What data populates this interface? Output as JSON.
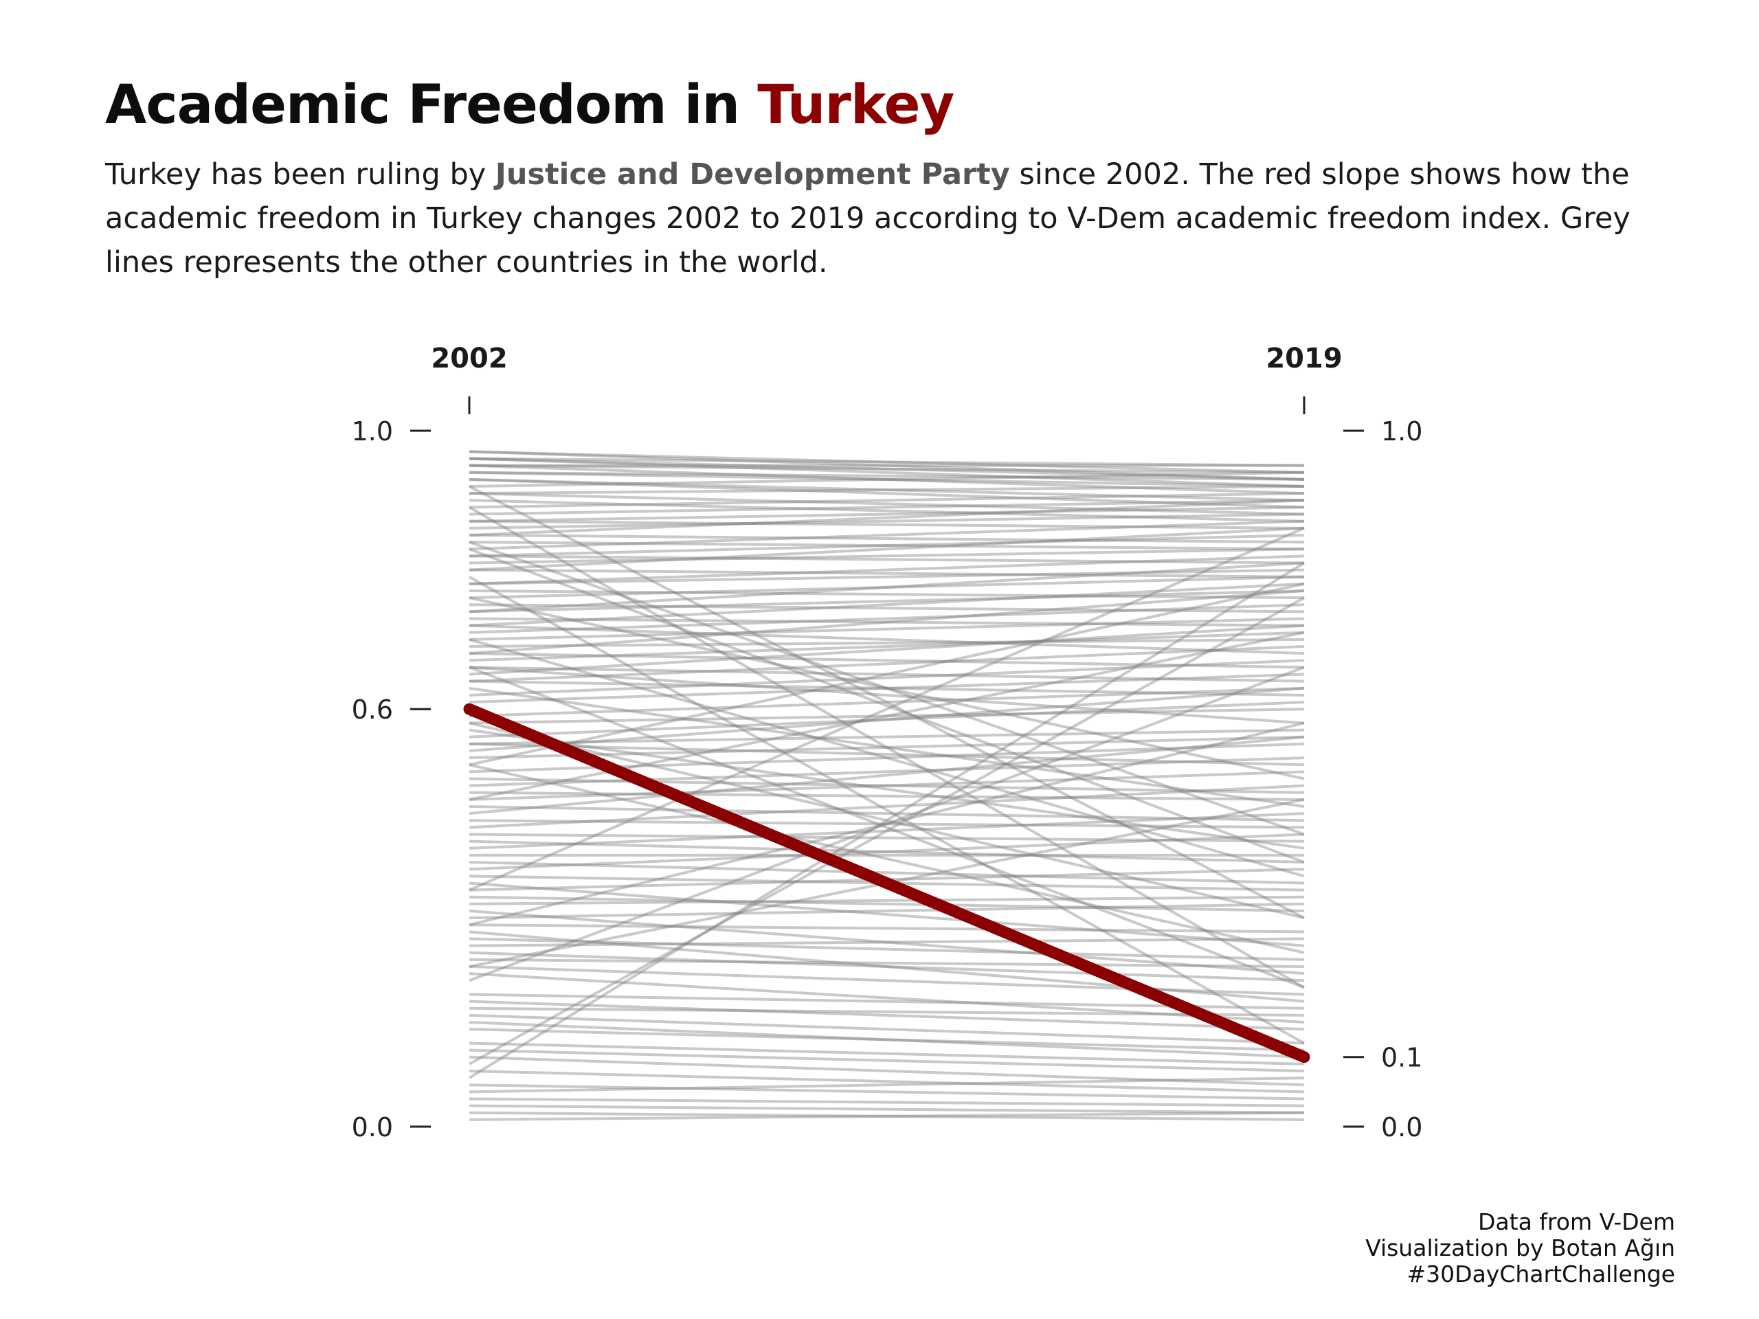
{
  "header": {
    "title_prefix": "Academic Freedom in ",
    "title_highlight": "Turkey",
    "subtitle": {
      "part1": "Turkey has been ruling by ",
      "bold": "Justice and Development Party",
      "part2": " since 2002. The red slope shows how the academic freedom in Turkey changes 2002 to 2019 according to V-Dem academic freedom index. Grey lines represents the other countries in the world."
    }
  },
  "caption": {
    "line1": "Data from V-Dem",
    "line2": "Visualization by Botan Ağın",
    "line3": "#30DayChartChallenge"
  },
  "colors": {
    "highlight": "#8b0000",
    "others": "#7f7f7f",
    "bold_text": "#555555"
  },
  "chart_data": {
    "type": "line",
    "x": [
      "2002",
      "2019"
    ],
    "ylim": [
      0,
      1
    ],
    "left_ticks": [
      "1.0",
      "0.6",
      "0.0"
    ],
    "left_tick_values": [
      1.0,
      0.6,
      0.0
    ],
    "right_ticks": [
      "1.0",
      "0.1",
      "0.0"
    ],
    "right_tick_values": [
      1.0,
      0.1,
      0.0
    ],
    "highlight": {
      "start": 0.6,
      "end": 0.1
    },
    "others": [
      [
        0.97,
        0.94
      ],
      [
        0.97,
        0.93
      ],
      [
        0.96,
        0.95
      ],
      [
        0.96,
        0.92
      ],
      [
        0.96,
        0.93
      ],
      [
        0.95,
        0.94
      ],
      [
        0.95,
        0.91
      ],
      [
        0.95,
        0.95
      ],
      [
        0.94,
        0.92
      ],
      [
        0.94,
        0.93
      ],
      [
        0.93,
        0.9
      ],
      [
        0.93,
        0.89
      ],
      [
        0.92,
        0.94
      ],
      [
        0.92,
        0.3
      ],
      [
        0.91,
        0.88
      ],
      [
        0.91,
        0.92
      ],
      [
        0.9,
        0.87
      ],
      [
        0.89,
        0.91
      ],
      [
        0.89,
        0.2
      ],
      [
        0.88,
        0.9
      ],
      [
        0.87,
        0.86
      ],
      [
        0.87,
        0.89
      ],
      [
        0.86,
        0.88
      ],
      [
        0.85,
        0.84
      ],
      [
        0.85,
        0.9
      ],
      [
        0.84,
        0.83
      ],
      [
        0.84,
        0.42
      ],
      [
        0.83,
        0.87
      ],
      [
        0.82,
        0.81
      ],
      [
        0.82,
        0.85
      ],
      [
        0.81,
        0.83
      ],
      [
        0.8,
        0.79
      ],
      [
        0.8,
        0.86
      ],
      [
        0.79,
        0.12
      ],
      [
        0.78,
        0.8
      ],
      [
        0.78,
        0.82
      ],
      [
        0.77,
        0.76
      ],
      [
        0.76,
        0.79
      ],
      [
        0.76,
        0.5
      ],
      [
        0.75,
        0.74
      ],
      [
        0.74,
        0.81
      ],
      [
        0.74,
        0.77
      ],
      [
        0.73,
        0.72
      ],
      [
        0.72,
        0.78
      ],
      [
        0.72,
        0.68
      ],
      [
        0.71,
        0.75
      ],
      [
        0.7,
        0.36
      ],
      [
        0.7,
        0.73
      ],
      [
        0.69,
        0.7
      ],
      [
        0.68,
        0.66
      ],
      [
        0.68,
        0.77
      ],
      [
        0.67,
        0.71
      ],
      [
        0.66,
        0.64
      ],
      [
        0.66,
        0.58
      ],
      [
        0.65,
        0.72
      ],
      [
        0.64,
        0.69
      ],
      [
        0.64,
        0.62
      ],
      [
        0.63,
        0.46
      ],
      [
        0.62,
        0.67
      ],
      [
        0.61,
        0.65
      ],
      [
        0.59,
        0.63
      ],
      [
        0.58,
        0.6
      ],
      [
        0.57,
        0.4
      ],
      [
        0.56,
        0.61
      ],
      [
        0.55,
        0.57
      ],
      [
        0.55,
        0.52
      ],
      [
        0.54,
        0.63
      ],
      [
        0.53,
        0.56
      ],
      [
        0.52,
        0.25
      ],
      [
        0.51,
        0.55
      ],
      [
        0.5,
        0.48
      ],
      [
        0.49,
        0.53
      ],
      [
        0.48,
        0.47
      ],
      [
        0.47,
        0.51
      ],
      [
        0.46,
        0.44
      ],
      [
        0.45,
        0.56
      ],
      [
        0.44,
        0.43
      ],
      [
        0.43,
        0.49
      ],
      [
        0.42,
        0.41
      ],
      [
        0.41,
        0.38
      ],
      [
        0.4,
        0.45
      ],
      [
        0.39,
        0.39
      ],
      [
        0.38,
        0.35
      ],
      [
        0.37,
        0.42
      ],
      [
        0.36,
        0.34
      ],
      [
        0.35,
        0.26
      ],
      [
        0.34,
        0.37
      ],
      [
        0.33,
        0.31
      ],
      [
        0.32,
        0.33
      ],
      [
        0.31,
        0.22
      ],
      [
        0.3,
        0.32
      ],
      [
        0.29,
        0.28
      ],
      [
        0.28,
        0.18
      ],
      [
        0.27,
        0.24
      ],
      [
        0.26,
        0.27
      ],
      [
        0.25,
        0.21
      ],
      [
        0.24,
        0.23
      ],
      [
        0.23,
        0.19
      ],
      [
        0.22,
        0.15
      ],
      [
        0.21,
        0.66
      ],
      [
        0.19,
        0.17
      ],
      [
        0.18,
        0.14
      ],
      [
        0.17,
        0.16
      ],
      [
        0.16,
        0.12
      ],
      [
        0.15,
        0.1
      ],
      [
        0.14,
        0.11
      ],
      [
        0.12,
        0.09
      ],
      [
        0.11,
        0.08
      ],
      [
        0.1,
        0.06
      ],
      [
        0.09,
        0.76
      ],
      [
        0.08,
        0.05
      ],
      [
        0.07,
        0.81
      ],
      [
        0.06,
        0.04
      ],
      [
        0.05,
        0.07
      ],
      [
        0.04,
        0.03
      ],
      [
        0.03,
        0.02
      ],
      [
        0.02,
        0.01
      ],
      [
        0.01,
        0.02
      ],
      [
        0.34,
        0.86
      ],
      [
        0.47,
        0.71
      ],
      [
        0.29,
        0.58
      ],
      [
        0.58,
        0.3
      ],
      [
        0.66,
        0.2
      ],
      [
        0.83,
        0.38
      ],
      [
        0.52,
        0.78
      ],
      [
        0.23,
        0.47
      ]
    ]
  }
}
